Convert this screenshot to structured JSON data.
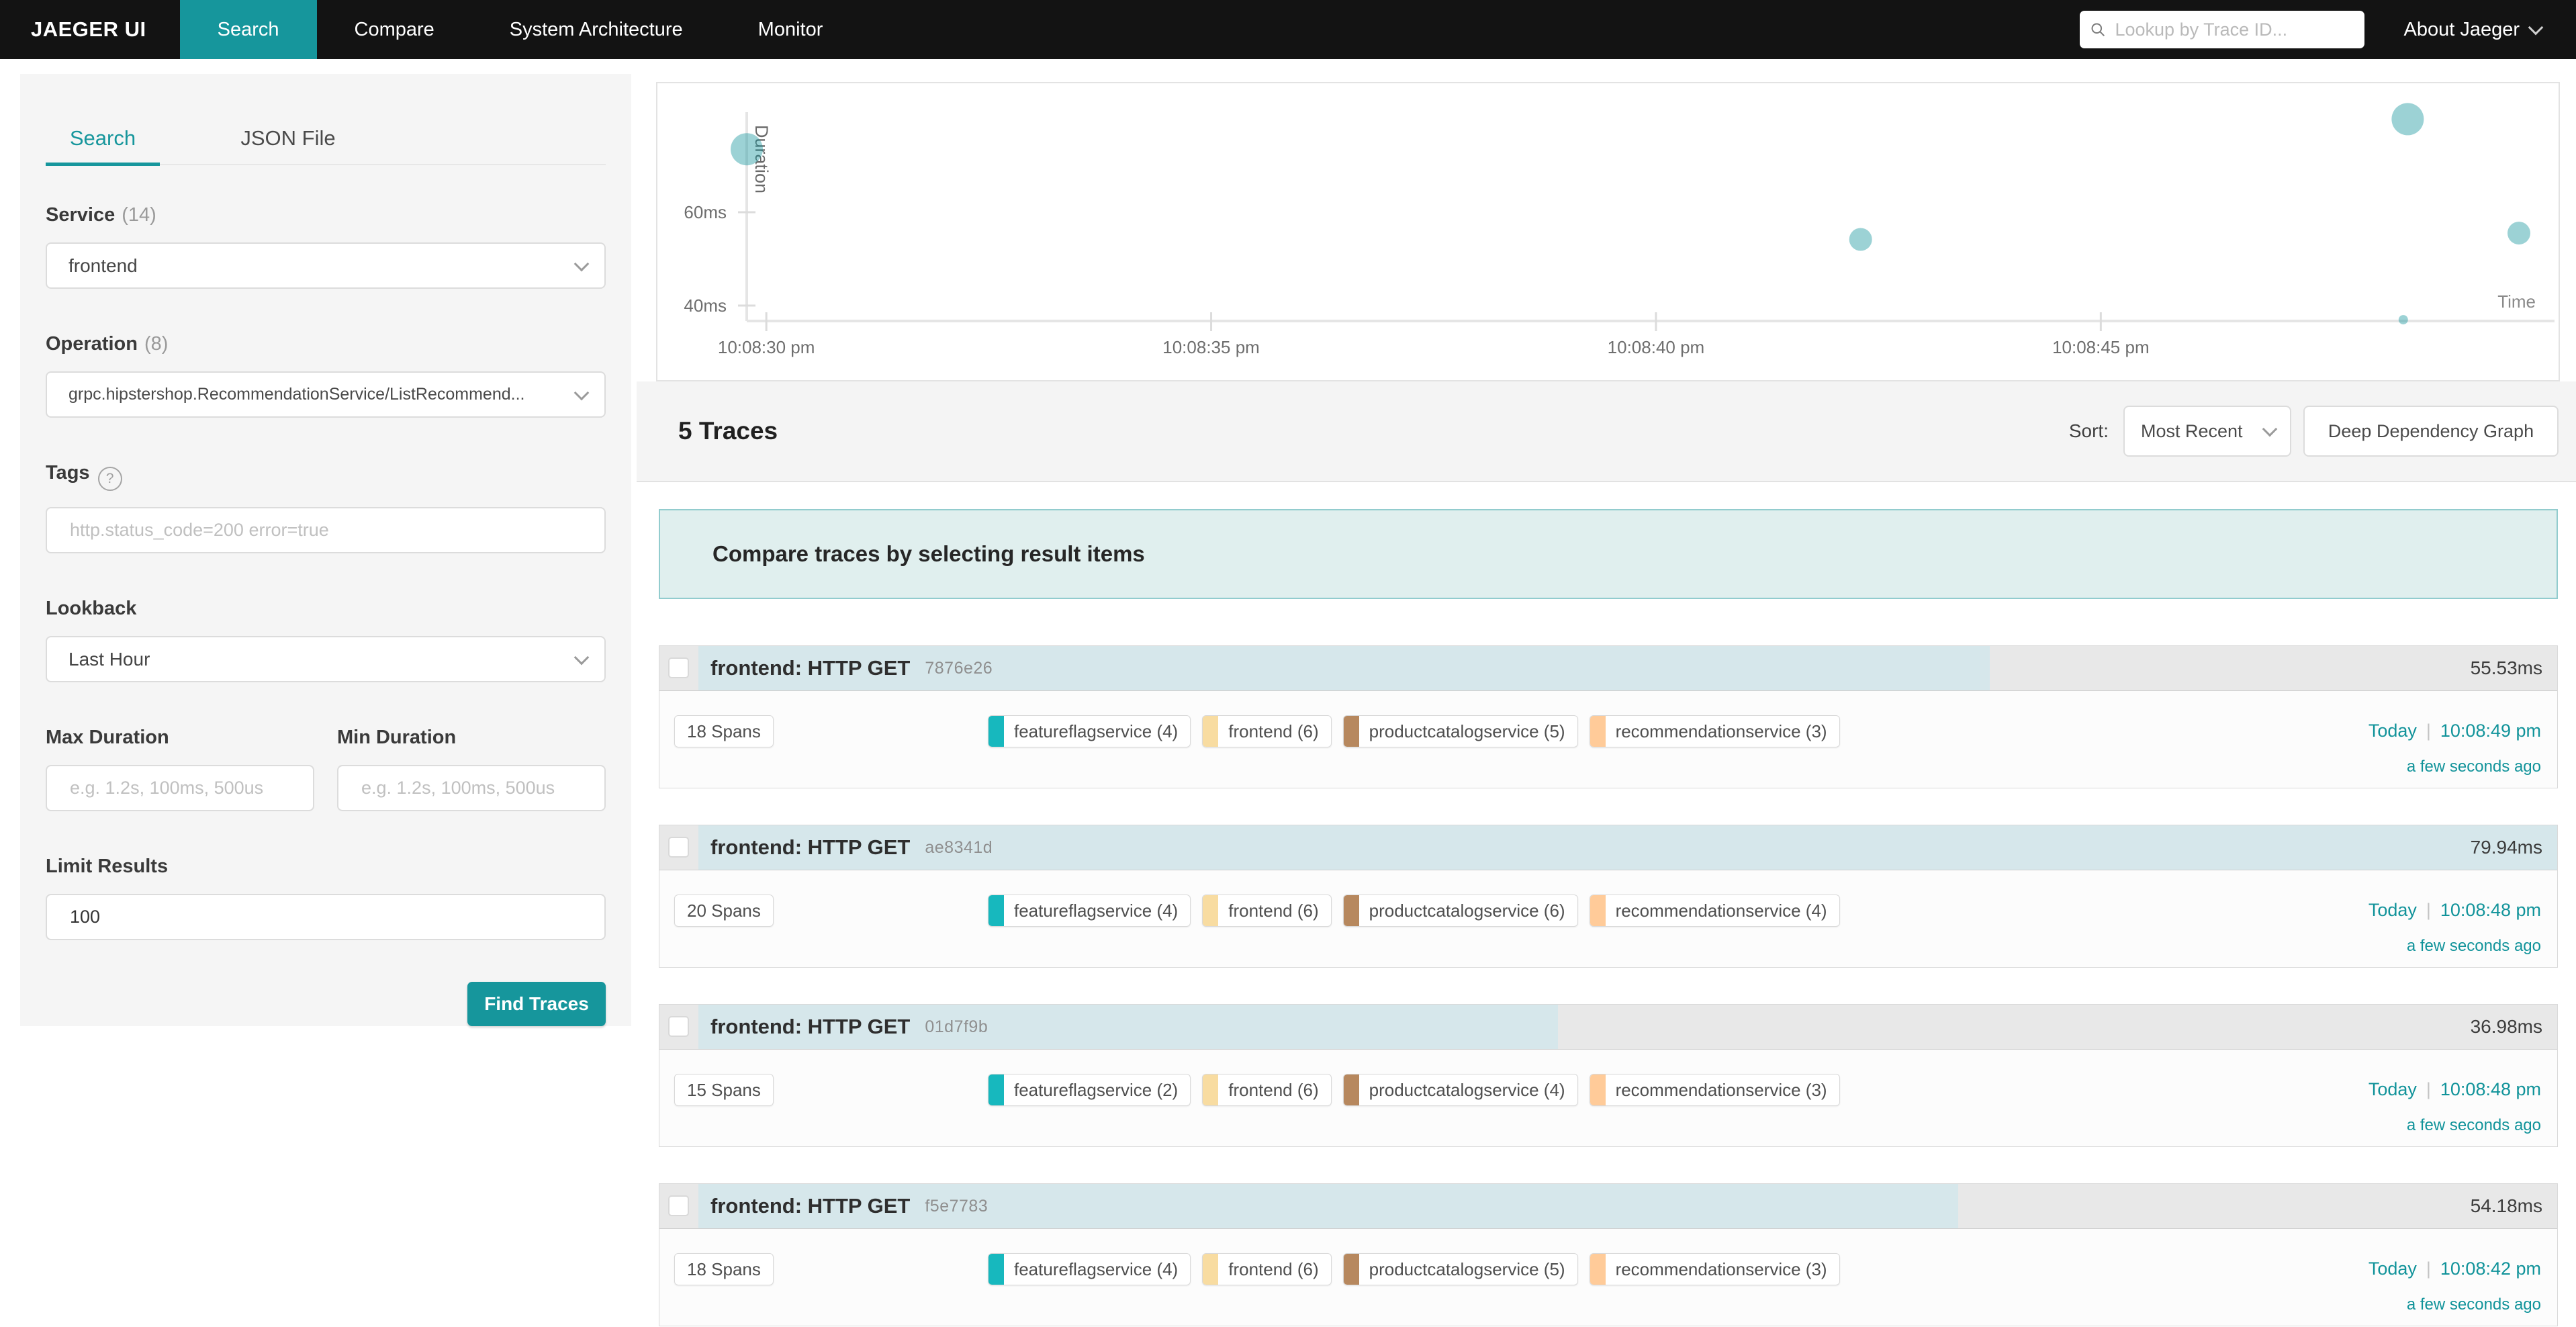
{
  "nav": {
    "brand": "JAEGER UI",
    "items": [
      {
        "label": "Search",
        "active": true
      },
      {
        "label": "Compare",
        "active": false
      },
      {
        "label": "System Architecture",
        "active": false
      },
      {
        "label": "Monitor",
        "active": false
      }
    ],
    "trace_lookup_placeholder": "Lookup by Trace ID...",
    "about_label": "About Jaeger"
  },
  "sidebar": {
    "tabs": [
      {
        "label": "Search",
        "active": true
      },
      {
        "label": "JSON File",
        "active": false
      }
    ],
    "service": {
      "label": "Service",
      "count": "(14)",
      "value": "frontend"
    },
    "operation": {
      "label": "Operation",
      "count": "(8)",
      "value": "grpc.hipstershop.RecommendationService/ListRecommend..."
    },
    "tags": {
      "label": "Tags",
      "placeholder": "http.status_code=200 error=true"
    },
    "lookback": {
      "label": "Lookback",
      "value": "Last Hour"
    },
    "max_duration": {
      "label": "Max Duration",
      "placeholder": "e.g. 1.2s, 100ms, 500us"
    },
    "min_duration": {
      "label": "Min Duration",
      "placeholder": "e.g. 1.2s, 100ms, 500us"
    },
    "limit": {
      "label": "Limit Results",
      "value": "100"
    },
    "find_button": "Find Traces"
  },
  "results": {
    "count_label": "5 Traces",
    "sort_label": "Sort:",
    "sort_value": "Most Recent",
    "ddg_button": "Deep Dependency Graph",
    "banner": "Compare traces by selecting result items"
  },
  "chart_data": {
    "type": "scatter",
    "xlabel": "Time",
    "ylabel": "Duration",
    "x_axis": {
      "unit": "seconds after 10:08:00 pm",
      "min": 29.78,
      "max": 50.1,
      "ticks": [
        {
          "label": "10:08:30 pm",
          "t": 30
        },
        {
          "label": "10:08:35 pm",
          "t": 35
        },
        {
          "label": "10:08:40 pm",
          "t": 40
        },
        {
          "label": "10:08:45 pm",
          "t": 45
        }
      ]
    },
    "y_axis": {
      "unit": "ms",
      "min": 36.7,
      "max": 80.0,
      "ticks": [
        {
          "label": "60ms",
          "v": 60
        },
        {
          "label": "40ms",
          "v": 40
        }
      ]
    },
    "points": [
      {
        "t": 29.78,
        "duration_ms": 73.5,
        "r": 24,
        "time": "~10:08:30 pm"
      },
      {
        "t": 42.3,
        "duration_ms": 54.18,
        "r": 17,
        "time": "10:08:42 pm"
      },
      {
        "t": 48.4,
        "duration_ms": 36.98,
        "r": 7,
        "time": "10:08:48 pm"
      },
      {
        "t": 48.45,
        "duration_ms": 79.94,
        "r": 24,
        "time": "10:08:48 pm"
      },
      {
        "t": 49.7,
        "duration_ms": 55.53,
        "r": 17,
        "time": "10:08:49 pm"
      }
    ],
    "point_color": "#12939a",
    "point_opacity": 0.42,
    "grid": false,
    "legend": false
  },
  "traces": [
    {
      "title": "frontend: HTTP GET",
      "trace_id": "7876e26",
      "duration": "55.53ms",
      "duration_ms": 55.53,
      "spans": "18 Spans",
      "services": [
        {
          "label": "featureflagservice (4)",
          "color": "#17B8BE"
        },
        {
          "label": "frontend (6)",
          "color": "#F8DCA1"
        },
        {
          "label": "productcatalogservice (5)",
          "color": "#B7885E"
        },
        {
          "label": "recommendationservice (3)",
          "color": "#FFCB99"
        }
      ],
      "day": "Today",
      "time": "10:08:49 pm",
      "relative": "a few seconds ago"
    },
    {
      "title": "frontend: HTTP GET",
      "trace_id": "ae8341d",
      "duration": "79.94ms",
      "duration_ms": 79.94,
      "spans": "20 Spans",
      "services": [
        {
          "label": "featureflagservice (4)",
          "color": "#17B8BE"
        },
        {
          "label": "frontend (6)",
          "color": "#F8DCA1"
        },
        {
          "label": "productcatalogservice (6)",
          "color": "#B7885E"
        },
        {
          "label": "recommendationservice (4)",
          "color": "#FFCB99"
        }
      ],
      "day": "Today",
      "time": "10:08:48 pm",
      "relative": "a few seconds ago"
    },
    {
      "title": "frontend: HTTP GET",
      "trace_id": "01d7f9b",
      "duration": "36.98ms",
      "duration_ms": 36.98,
      "spans": "15 Spans",
      "services": [
        {
          "label": "featureflagservice (2)",
          "color": "#17B8BE"
        },
        {
          "label": "frontend (6)",
          "color": "#F8DCA1"
        },
        {
          "label": "productcatalogservice (4)",
          "color": "#B7885E"
        },
        {
          "label": "recommendationservice (3)",
          "color": "#FFCB99"
        }
      ],
      "day": "Today",
      "time": "10:08:48 pm",
      "relative": "a few seconds ago"
    },
    {
      "title": "frontend: HTTP GET",
      "trace_id": "f5e7783",
      "duration": "54.18ms",
      "duration_ms": 54.18,
      "spans": "18 Spans",
      "services": [
        {
          "label": "featureflagservice (4)",
          "color": "#17B8BE"
        },
        {
          "label": "frontend (6)",
          "color": "#F8DCA1"
        },
        {
          "label": "productcatalogservice (5)",
          "color": "#B7885E"
        },
        {
          "label": "recommendationservice (3)",
          "color": "#FFCB99"
        }
      ],
      "day": "Today",
      "time": "10:08:42 pm",
      "relative": "a few seconds ago"
    }
  ],
  "palette": {
    "primary_teal": "#16969c",
    "link_teal": "#11939a",
    "nav_bg": "#131313",
    "duration_bar": "#d6e7eb",
    "card_header_bg": "#e8e8e8",
    "banner_bg": "#e0efee"
  }
}
